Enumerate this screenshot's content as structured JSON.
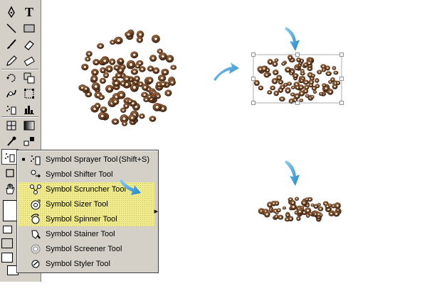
{
  "toolbox": {
    "tools": [
      {
        "name": "pen-tool",
        "icon": "pen-icon"
      },
      {
        "name": "type-tool",
        "icon": "type-icon",
        "glyph": "T"
      },
      {
        "name": "line-tool",
        "icon": "line-icon"
      },
      {
        "name": "rectangle-tool",
        "icon": "rectangle-icon"
      },
      {
        "name": "paintbrush-tool",
        "icon": "paintbrush-icon"
      },
      {
        "name": "eraser-tool",
        "icon": "eraser-icon"
      },
      {
        "name": "rotate-tool",
        "icon": "rotate-icon"
      },
      {
        "name": "scale-tool",
        "icon": "scale-icon"
      },
      {
        "name": "warp-tool",
        "icon": "warp-icon"
      },
      {
        "name": "free-transform-tool",
        "icon": "free-transform-icon"
      },
      {
        "name": "symbol-sprayer-tool",
        "icon": "symbol-sprayer-icon"
      },
      {
        "name": "column-graph-tool",
        "icon": "column-graph-icon"
      },
      {
        "name": "mesh-tool",
        "icon": "mesh-icon"
      },
      {
        "name": "gradient-tool",
        "icon": "gradient-icon"
      },
      {
        "name": "eyedropper-tool",
        "icon": "eyedropper-icon"
      },
      {
        "name": "blend-tool",
        "icon": "blend-icon"
      },
      {
        "name": "symbol-tool-active",
        "icon": "symbol-sprayer-icon"
      },
      {
        "name": "hand-tool",
        "icon": "hand-icon"
      }
    ]
  },
  "flyout": {
    "items": [
      {
        "label": "Symbol Sprayer Tool",
        "shortcut": "(Shift+S)",
        "icon": "symbol-sprayer-icon",
        "checked": true,
        "highlighted": false
      },
      {
        "label": "Symbol Shifter Tool",
        "shortcut": "",
        "icon": "symbol-shifter-icon",
        "checked": false,
        "highlighted": false
      },
      {
        "label": "Symbol Scruncher Tool",
        "shortcut": "",
        "icon": "symbol-scruncher-icon",
        "checked": false,
        "highlighted": true
      },
      {
        "label": "Symbol Sizer Tool",
        "shortcut": "",
        "icon": "symbol-sizer-icon",
        "checked": false,
        "highlighted": true
      },
      {
        "label": "Symbol Spinner Tool",
        "shortcut": "",
        "icon": "symbol-spinner-icon",
        "checked": false,
        "highlighted": true
      },
      {
        "label": "Symbol Stainer Tool",
        "shortcut": "",
        "icon": "symbol-stainer-icon",
        "checked": false,
        "highlighted": false
      },
      {
        "label": "Symbol Screener Tool",
        "shortcut": "",
        "icon": "symbol-screener-icon",
        "checked": false,
        "highlighted": false
      },
      {
        "label": "Symbol Styler Tool",
        "shortcut": "",
        "icon": "symbol-styler-icon",
        "checked": false,
        "highlighted": false
      }
    ]
  },
  "colors": {
    "toolbox_bg": "#d4d0c8",
    "highlight": "#f0ec8e",
    "arrow": "#3aa0d8",
    "symbol_brown": "#6b4226",
    "symbol_light": "#c9a27a"
  }
}
